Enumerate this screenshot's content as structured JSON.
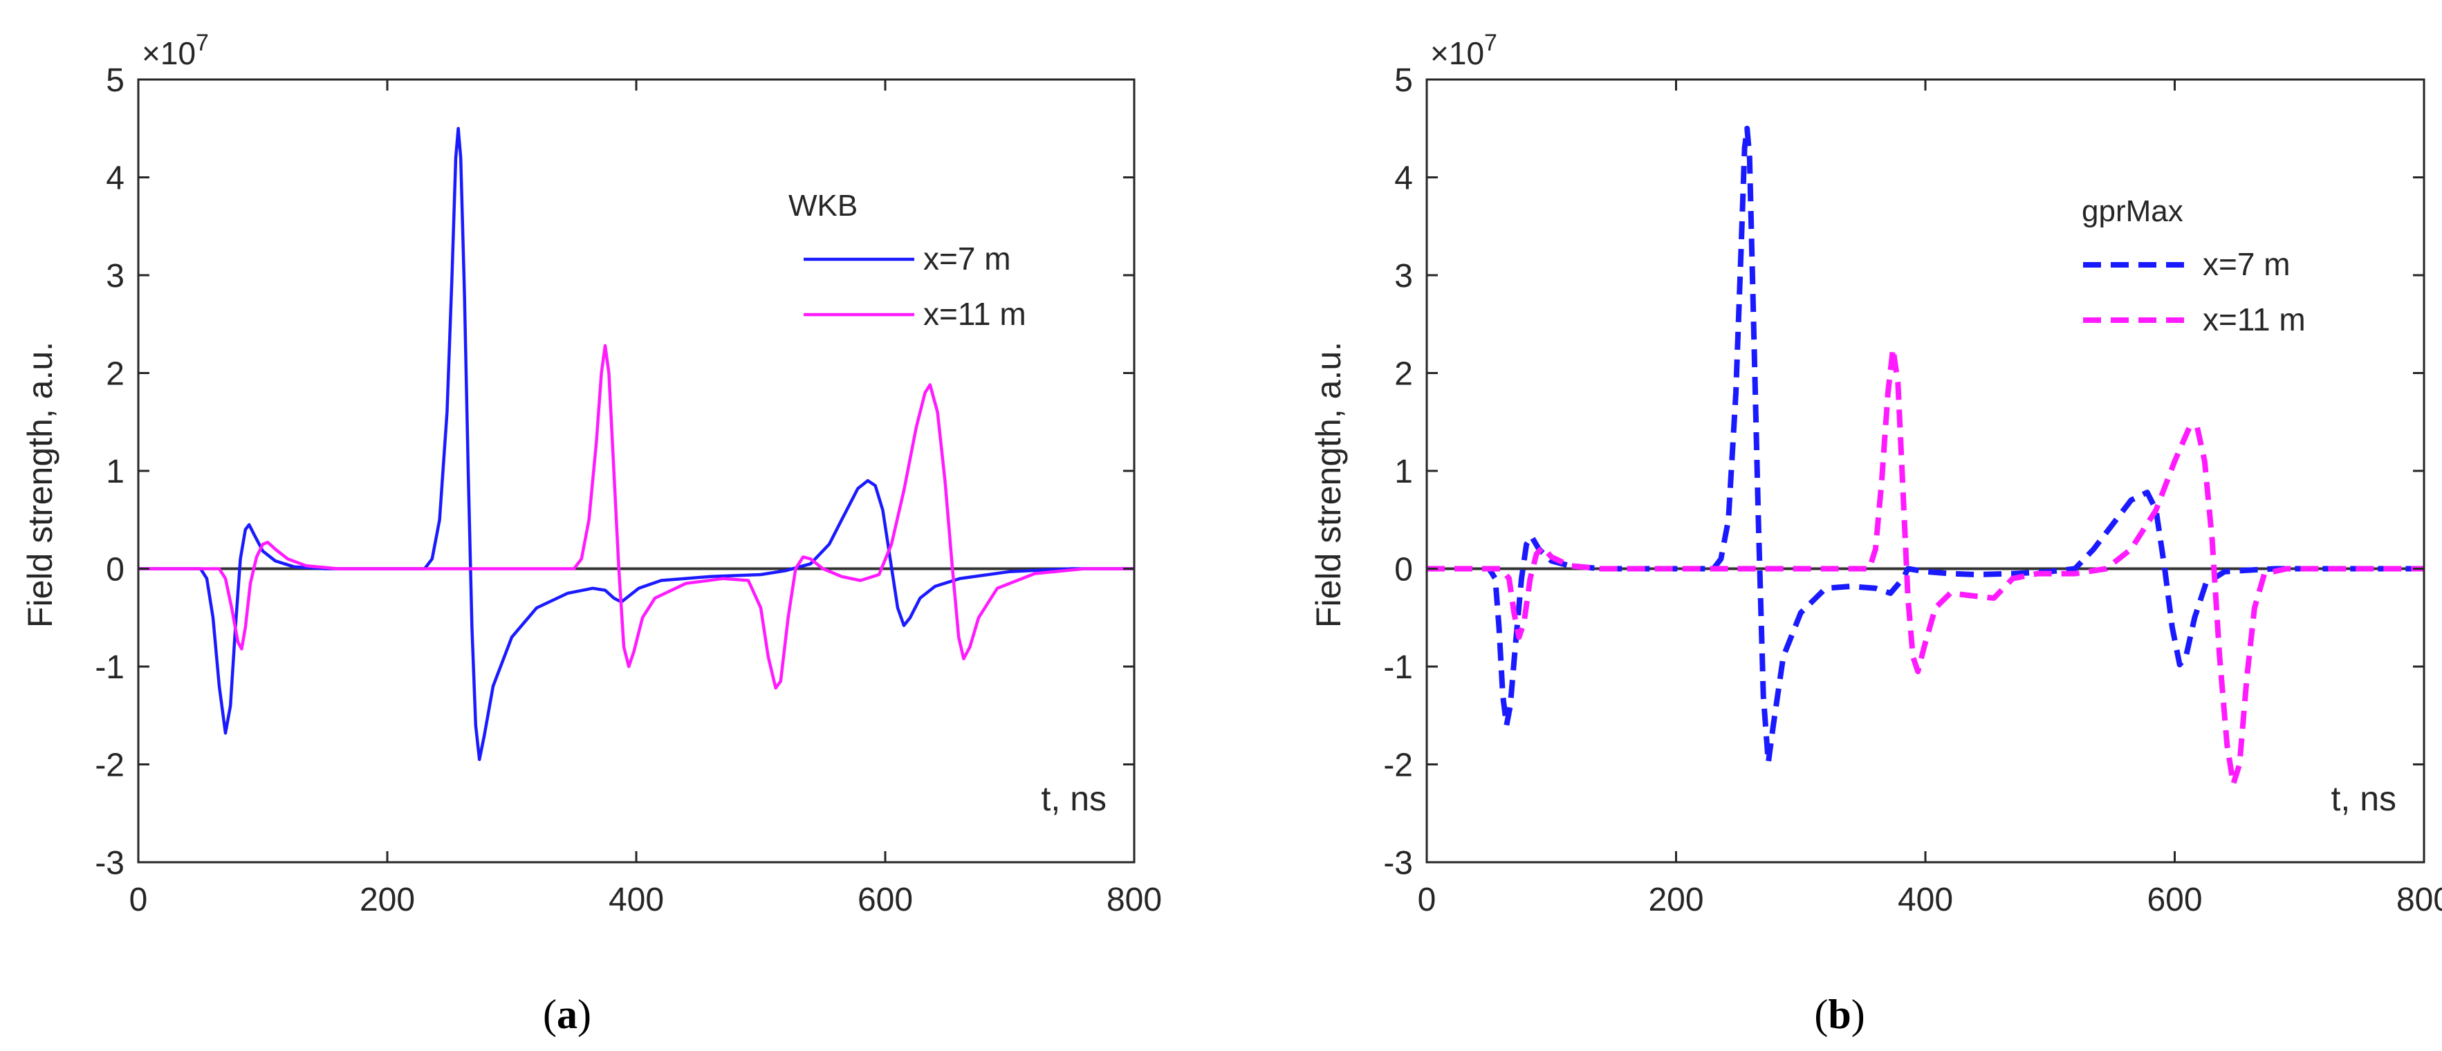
{
  "chart_data": [
    {
      "panel": "(a)",
      "type": "line",
      "ylabel": "Field strength, a.u.",
      "xlabel": "t, ns",
      "multiplier": "×10",
      "multiplier_exp": "7",
      "xlim": [
        0,
        800
      ],
      "ylim": [
        -3,
        5
      ],
      "xticks": [
        0,
        200,
        400,
        600,
        800
      ],
      "yticks": [
        -3,
        -2,
        -1,
        0,
        1,
        2,
        3,
        4,
        5
      ],
      "legend_title": "WKB",
      "series": [
        {
          "name": "x=7 m",
          "color": "#1a1aff",
          "style": "solid",
          "points": [
            [
              0,
              0
            ],
            [
              50,
              0
            ],
            [
              55,
              -0.1
            ],
            [
              60,
              -0.5
            ],
            [
              65,
              -1.2
            ],
            [
              70,
              -1.68
            ],
            [
              74,
              -1.4
            ],
            [
              78,
              -0.6
            ],
            [
              82,
              0.1
            ],
            [
              86,
              0.4
            ],
            [
              89,
              0.45
            ],
            [
              93,
              0.35
            ],
            [
              100,
              0.18
            ],
            [
              110,
              0.08
            ],
            [
              125,
              0.02
            ],
            [
              150,
              0
            ],
            [
              230,
              0
            ],
            [
              236,
              0.1
            ],
            [
              242,
              0.5
            ],
            [
              248,
              1.6
            ],
            [
              252,
              3.0
            ],
            [
              255,
              4.2
            ],
            [
              257,
              4.5
            ],
            [
              259,
              4.2
            ],
            [
              262,
              2.8
            ],
            [
              265,
              1.0
            ],
            [
              268,
              -0.6
            ],
            [
              271,
              -1.6
            ],
            [
              274,
              -1.95
            ],
            [
              278,
              -1.7
            ],
            [
              285,
              -1.2
            ],
            [
              300,
              -0.7
            ],
            [
              320,
              -0.4
            ],
            [
              345,
              -0.25
            ],
            [
              365,
              -0.2
            ],
            [
              375,
              -0.22
            ],
            [
              382,
              -0.3
            ],
            [
              388,
              -0.34
            ],
            [
              394,
              -0.28
            ],
            [
              402,
              -0.2
            ],
            [
              420,
              -0.12
            ],
            [
              460,
              -0.08
            ],
            [
              500,
              -0.06
            ],
            [
              520,
              -0.02
            ],
            [
              540,
              0.05
            ],
            [
              555,
              0.25
            ],
            [
              565,
              0.5
            ],
            [
              578,
              0.82
            ],
            [
              586,
              0.9
            ],
            [
              592,
              0.85
            ],
            [
              598,
              0.6
            ],
            [
              604,
              0.1
            ],
            [
              610,
              -0.4
            ],
            [
              615,
              -0.58
            ],
            [
              620,
              -0.5
            ],
            [
              628,
              -0.3
            ],
            [
              640,
              -0.18
            ],
            [
              660,
              -0.1
            ],
            [
              700,
              -0.03
            ],
            [
              750,
              0
            ],
            [
              800,
              0
            ]
          ]
        },
        {
          "name": "x=11 m",
          "color": "#ff1aff",
          "style": "solid",
          "points": [
            [
              0,
              0
            ],
            [
              65,
              0
            ],
            [
              70,
              -0.1
            ],
            [
              75,
              -0.4
            ],
            [
              80,
              -0.75
            ],
            [
              83,
              -0.82
            ],
            [
              86,
              -0.6
            ],
            [
              90,
              -0.15
            ],
            [
              95,
              0.12
            ],
            [
              100,
              0.25
            ],
            [
              104,
              0.27
            ],
            [
              110,
              0.2
            ],
            [
              120,
              0.1
            ],
            [
              135,
              0.03
            ],
            [
              160,
              0
            ],
            [
              350,
              0
            ],
            [
              356,
              0.1
            ],
            [
              362,
              0.5
            ],
            [
              368,
              1.3
            ],
            [
              372,
              2.0
            ],
            [
              375,
              2.28
            ],
            [
              378,
              2.0
            ],
            [
              382,
              1.0
            ],
            [
              386,
              0.0
            ],
            [
              390,
              -0.8
            ],
            [
              394,
              -1.0
            ],
            [
              398,
              -0.85
            ],
            [
              405,
              -0.5
            ],
            [
              415,
              -0.3
            ],
            [
              440,
              -0.15
            ],
            [
              470,
              -0.1
            ],
            [
              490,
              -0.12
            ],
            [
              500,
              -0.4
            ],
            [
              506,
              -0.9
            ],
            [
              512,
              -1.22
            ],
            [
              516,
              -1.15
            ],
            [
              522,
              -0.5
            ],
            [
              528,
              0.0
            ],
            [
              534,
              0.12
            ],
            [
              540,
              0.1
            ],
            [
              550,
              0.0
            ],
            [
              565,
              -0.08
            ],
            [
              580,
              -0.12
            ],
            [
              595,
              -0.06
            ],
            [
              605,
              0.25
            ],
            [
              615,
              0.8
            ],
            [
              625,
              1.45
            ],
            [
              632,
              1.8
            ],
            [
              636,
              1.88
            ],
            [
              642,
              1.6
            ],
            [
              648,
              0.9
            ],
            [
              654,
              0.0
            ],
            [
              659,
              -0.7
            ],
            [
              663,
              -0.92
            ],
            [
              668,
              -0.8
            ],
            [
              675,
              -0.5
            ],
            [
              690,
              -0.2
            ],
            [
              720,
              -0.05
            ],
            [
              760,
              0
            ],
            [
              800,
              0
            ]
          ]
        }
      ]
    },
    {
      "panel": "(b)",
      "type": "line",
      "ylabel": "Field strength, a.u.",
      "xlabel": "t, ns",
      "multiplier": "×10",
      "multiplier_exp": "7",
      "xlim": [
        0,
        800
      ],
      "ylim": [
        -3,
        5
      ],
      "xticks": [
        0,
        200,
        400,
        600,
        800
      ],
      "yticks": [
        -3,
        -2,
        -1,
        0,
        1,
        2,
        3,
        4,
        5
      ],
      "legend_title": "gprMax",
      "series": [
        {
          "name": "x=7 m",
          "color": "#1a1aff",
          "style": "dashed",
          "points": [
            [
              0,
              0
            ],
            [
              50,
              0
            ],
            [
              55,
              -0.1
            ],
            [
              58,
              -0.6
            ],
            [
              61,
              -1.3
            ],
            [
              64,
              -1.6
            ],
            [
              67,
              -1.4
            ],
            [
              71,
              -0.8
            ],
            [
              76,
              -0.1
            ],
            [
              80,
              0.25
            ],
            [
              84,
              0.33
            ],
            [
              90,
              0.2
            ],
            [
              100,
              0.08
            ],
            [
              115,
              0.03
            ],
            [
              140,
              0
            ],
            [
              230,
              0
            ],
            [
              236,
              0.1
            ],
            [
              242,
              0.5
            ],
            [
              248,
              1.8
            ],
            [
              252,
              3.2
            ],
            [
              255,
              4.3
            ],
            [
              257,
              4.5
            ],
            [
              259,
              4.2
            ],
            [
              262,
              2.6
            ],
            [
              266,
              0.5
            ],
            [
              270,
              -1.3
            ],
            [
              274,
              -1.98
            ],
            [
              278,
              -1.6
            ],
            [
              286,
              -0.9
            ],
            [
              300,
              -0.45
            ],
            [
              320,
              -0.2
            ],
            [
              340,
              -0.18
            ],
            [
              360,
              -0.2
            ],
            [
              372,
              -0.25
            ],
            [
              382,
              -0.1
            ],
            [
              386,
              0.0
            ],
            [
              400,
              -0.03
            ],
            [
              420,
              -0.05
            ],
            [
              440,
              -0.06
            ],
            [
              470,
              -0.05
            ],
            [
              500,
              -0.03
            ],
            [
              520,
              0.0
            ],
            [
              535,
              0.2
            ],
            [
              550,
              0.45
            ],
            [
              565,
              0.7
            ],
            [
              578,
              0.78
            ],
            [
              585,
              0.6
            ],
            [
              592,
              0.0
            ],
            [
              598,
              -0.6
            ],
            [
              604,
              -0.98
            ],
            [
              609,
              -0.9
            ],
            [
              616,
              -0.5
            ],
            [
              625,
              -0.15
            ],
            [
              640,
              -0.03
            ],
            [
              680,
              0
            ],
            [
              800,
              0
            ]
          ]
        },
        {
          "name": "x=11 m",
          "color": "#ff1aff",
          "style": "dashed",
          "points": [
            [
              0,
              0
            ],
            [
              60,
              0
            ],
            [
              66,
              -0.1
            ],
            [
              70,
              -0.45
            ],
            [
              74,
              -0.7
            ],
            [
              78,
              -0.55
            ],
            [
              83,
              -0.1
            ],
            [
              88,
              0.15
            ],
            [
              93,
              0.22
            ],
            [
              100,
              0.12
            ],
            [
              115,
              0.03
            ],
            [
              140,
              0
            ],
            [
              355,
              0
            ],
            [
              360,
              0.2
            ],
            [
              365,
              0.9
            ],
            [
              370,
              1.8
            ],
            [
              374,
              2.25
            ],
            [
              378,
              1.9
            ],
            [
              382,
              0.8
            ],
            [
              386,
              -0.3
            ],
            [
              390,
              -0.9
            ],
            [
              394,
              -1.05
            ],
            [
              399,
              -0.8
            ],
            [
              408,
              -0.4
            ],
            [
              420,
              -0.25
            ],
            [
              440,
              -0.28
            ],
            [
              455,
              -0.3
            ],
            [
              470,
              -0.1
            ],
            [
              490,
              -0.05
            ],
            [
              520,
              -0.05
            ],
            [
              545,
              0.0
            ],
            [
              565,
              0.2
            ],
            [
              585,
              0.6
            ],
            [
              600,
              1.1
            ],
            [
              612,
              1.45
            ],
            [
              618,
              1.45
            ],
            [
              624,
              1.1
            ],
            [
              630,
              0.3
            ],
            [
              636,
              -0.9
            ],
            [
              642,
              -1.8
            ],
            [
              647,
              -2.2
            ],
            [
              652,
              -2.0
            ],
            [
              658,
              -1.1
            ],
            [
              664,
              -0.4
            ],
            [
              672,
              -0.05
            ],
            [
              690,
              0
            ],
            [
              800,
              0
            ]
          ]
        }
      ]
    }
  ]
}
